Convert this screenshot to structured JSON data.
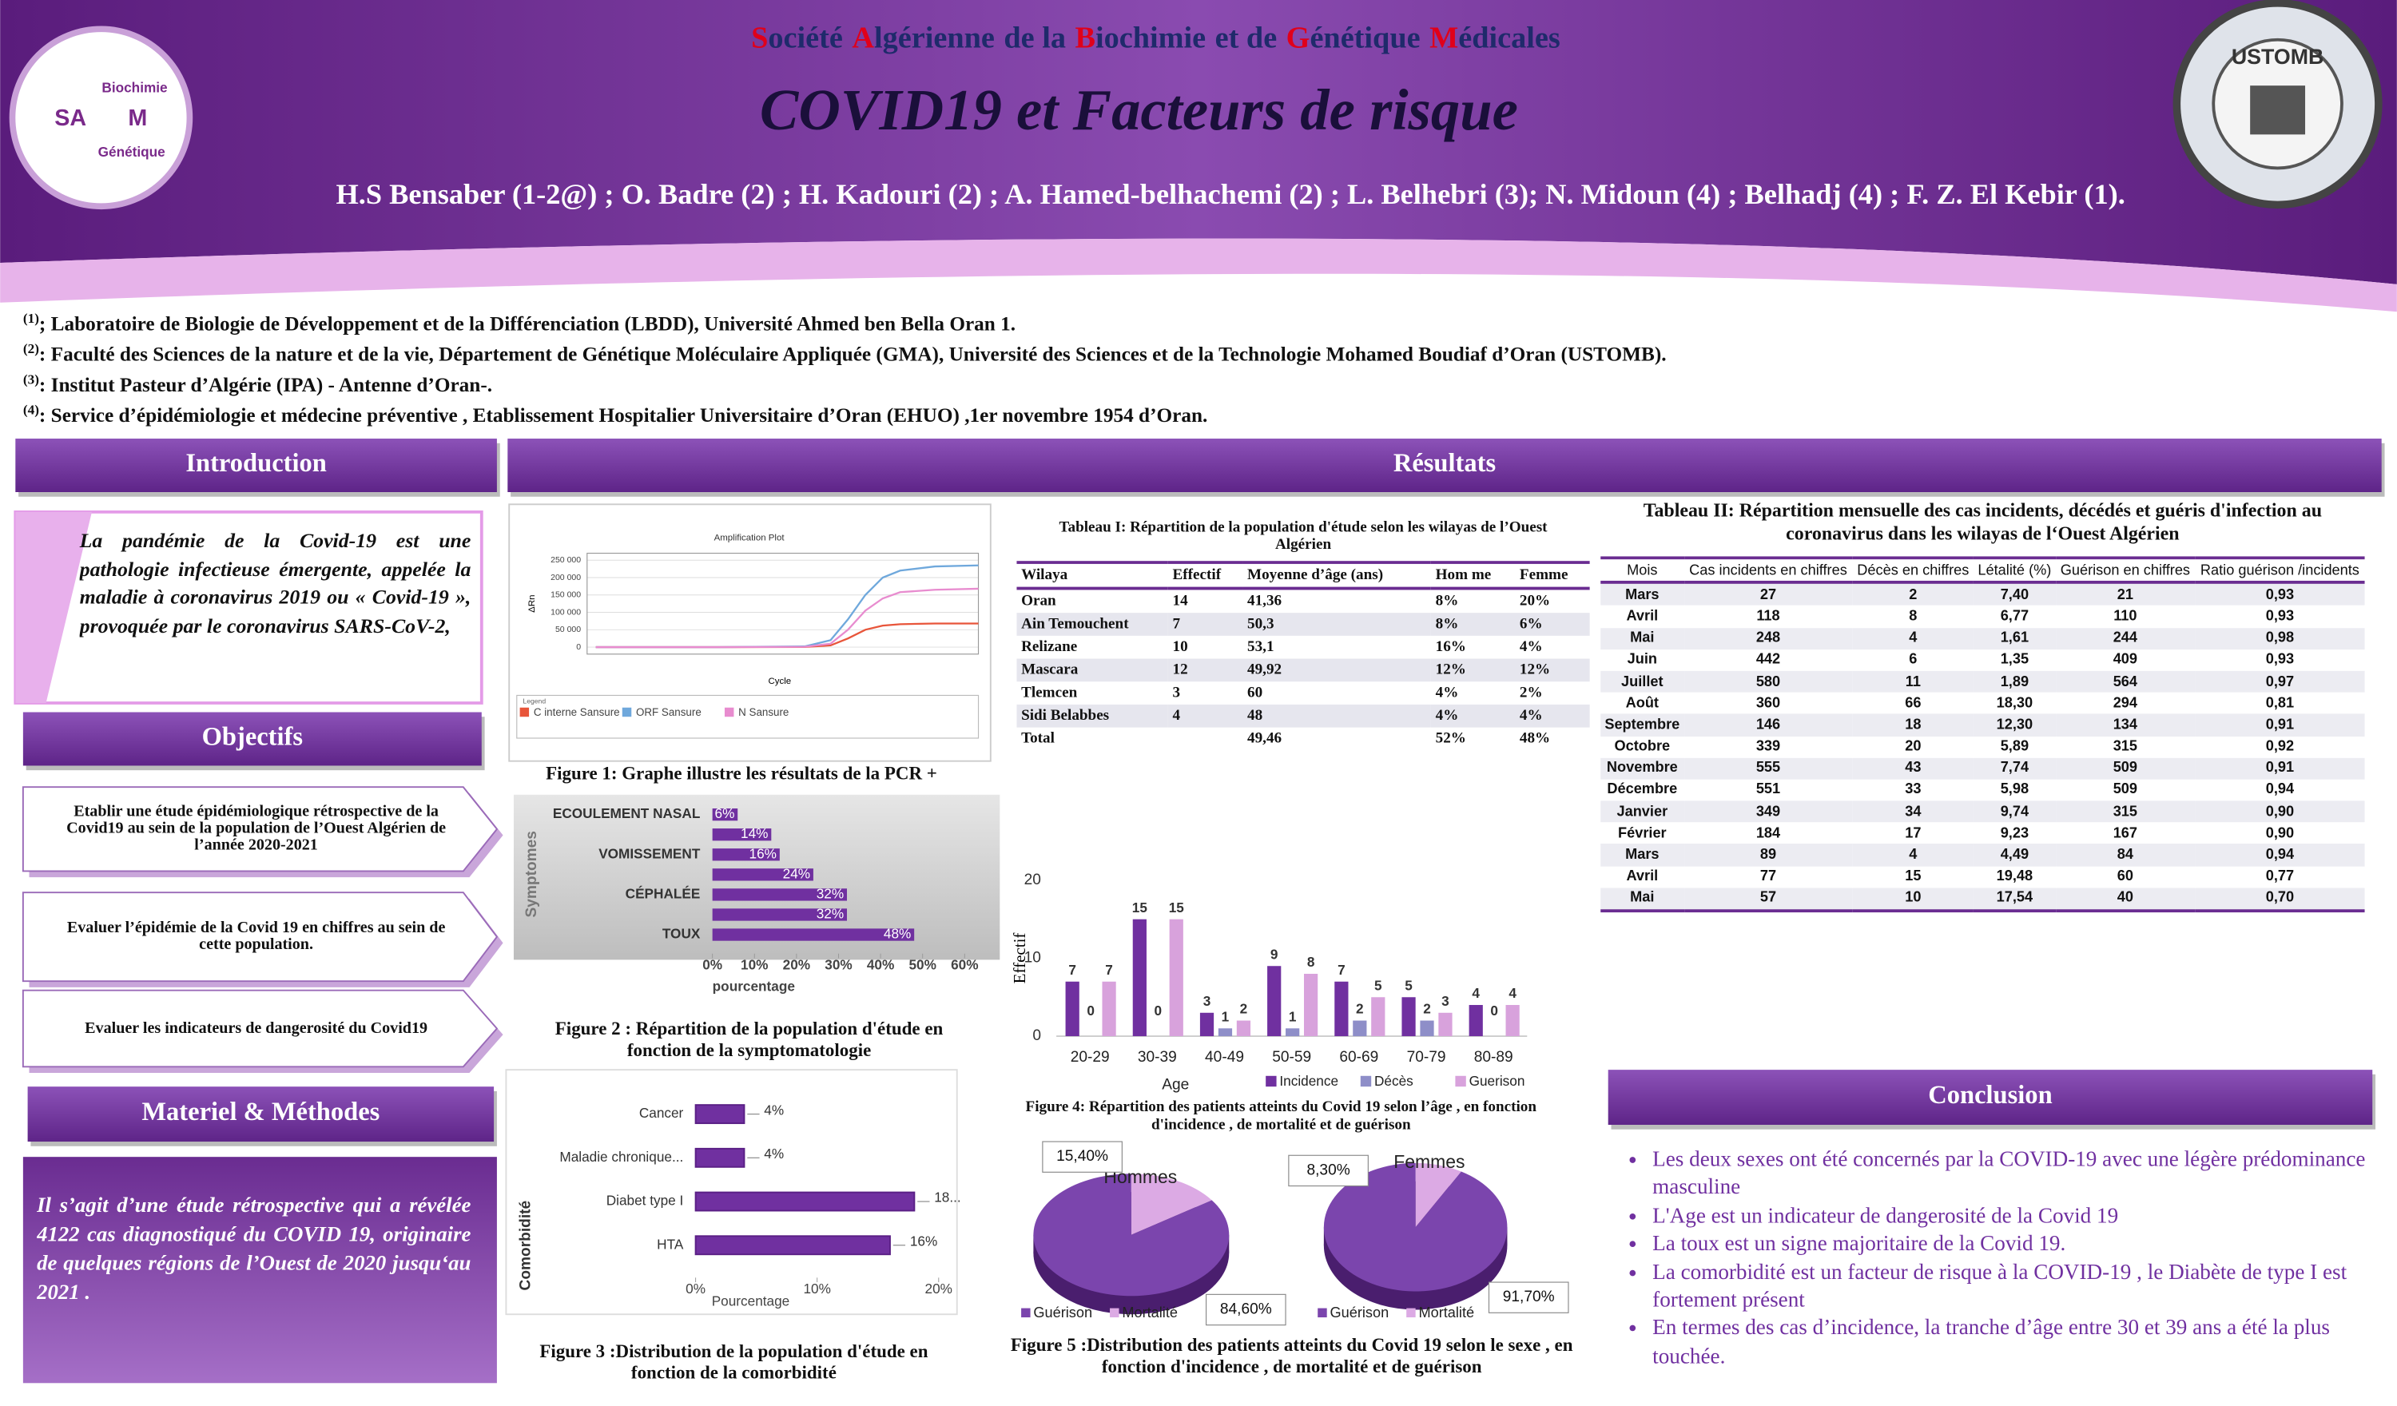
{
  "header": {
    "society": [
      "Société",
      "Algérienne",
      "de la",
      "Biochimie",
      "et de",
      "Génétique",
      "Médicales"
    ],
    "title": "COVID19 et Facteurs de risque",
    "authors": "H.S Bensaber (1-2@) ; O. Badre (2) ; H. Kadouri (2) ; A. Hamed-belhachemi (2) ; L. Belhebri (3); N. Midoun (4) ; Belhadj (4) ; F. Z. El Kebir (1).",
    "logo_left": [
      "Biochimie",
      "SA",
      "M",
      "Génétique"
    ],
    "logo_right": "USTOMB"
  },
  "affiliations": [
    {
      "mark": "(1)",
      "text": "; Laboratoire de Biologie de Développement et de la Différenciation (LBDD), Université Ahmed ben Bella Oran 1."
    },
    {
      "mark": "(2)",
      "text": ":  Faculté des Sciences de la nature et de la vie, Département de Génétique Moléculaire Appliquée (GMA), Université des Sciences et de la Technologie Mohamed Boudiaf d’Oran (USTOMB)."
    },
    {
      "mark": "(3)",
      "text": ": Institut Pasteur d’Algérie (IPA) - Antenne d’Oran-."
    },
    {
      "mark": "(4)",
      "text": ":  Service d’épidémiologie et médecine préventive , Etablissement Hospitalier Universitaire d’Oran (EHUO) ,1er novembre 1954 d’Oran."
    }
  ],
  "introduction": {
    "heading": "Introduction",
    "text": "La pandémie de la Covid-19 est  une pathologie infectieuse émergente, appelée la maladie à coronavirus 2019 ou « Covid-19 », provoquée par le coronavirus SARS-CoV-2,"
  },
  "objectifs": {
    "heading": "Objectifs",
    "items": [
      "Etablir une étude épidémiologique rétrospective de la Covid19 au sein de la  population de l’Ouest Algérien de l’année 2020-2021",
      "Evaluer  l’épidémie de la  Covid 19 en chiffres au sein de cette population.",
      "Evaluer les indicateurs de dangerosité du Covid19"
    ]
  },
  "methodes": {
    "heading": "Materiel & Méthodes",
    "text": "Il s’agit d’une étude rétrospective qui a révélée 4122 cas diagnostiqué du COVID 19, originaire de quelques régions de l’Ouest de 2020 jusqu‘au 2021 ."
  },
  "resultats": {
    "heading": "Résultats"
  },
  "conclusion": {
    "heading": "Conclusion",
    "items": [
      "Les deux sexes ont été concernés par la COVID-19 avec  une légère prédominance masculine",
      "L'Age est un indicateur  de dangerosité de la Covid 19",
      "La toux est un signe majoritaire de la Covid 19.",
      "La comorbidité est un facteur de risque à la COVID-19 , le Diabète de type I est fortement présent",
      "En termes des cas d’incidence, la tranche d’âge entre 30 et 39 ans a été la plus touchée."
    ]
  },
  "tables": {
    "t1": {
      "title": "Tableau I: Répartition de la population d'étude selon les wilayas de l’Ouest Algérien",
      "rows": [
        [
          "Wilaya",
          "Effectif",
          "Moyenne d’âge (ans)",
          "Hom me",
          "Femme"
        ],
        [
          "Oran",
          "14",
          "41,36",
          "8%",
          "20%"
        ],
        [
          "Ain Temouchent",
          "7",
          "50,3",
          "8%",
          "6%"
        ],
        [
          "Relizane",
          "10",
          "53,1",
          "16%",
          "4%"
        ],
        [
          "Mascara",
          "12",
          "49,92",
          "12%",
          "12%"
        ],
        [
          "Tlemcen",
          "3",
          "60",
          "4%",
          "2%"
        ],
        [
          "Sidi Belabbes",
          "4",
          "48",
          "4%",
          "4%"
        ],
        [
          "Total",
          null,
          "49,46",
          "52%",
          "48%"
        ]
      ]
    },
    "t2": {
      "title": "Tableau II: Répartition mensuelle des cas incidents, décédés et guéris d'infection au coronavirus dans les wilayas de l‘Ouest Algérien",
      "rows": [
        [
          "Mois",
          "Cas incidents en chiffres",
          "Décès en chiffres",
          "Létalité (%)",
          "Guérison en chiffres",
          "Ratio guérison /incidents"
        ],
        [
          "Mars",
          "27",
          "2",
          "7,40",
          "21",
          "0,93"
        ],
        [
          "Avril",
          "118",
          "8",
          "6,77",
          "110",
          "0,93"
        ],
        [
          "Mai",
          "248",
          "4",
          "1,61",
          "244",
          "0,98"
        ],
        [
          "Juin",
          "442",
          "6",
          "1,35",
          "409",
          "0,93"
        ],
        [
          "Juillet",
          "580",
          "11",
          "1,89",
          "564",
          "0,97"
        ],
        [
          "Août",
          "360",
          "66",
          "18,30",
          "294",
          "0,81"
        ],
        [
          "Septembre",
          "146",
          "18",
          "12,30",
          "134",
          "0,91"
        ],
        [
          "Octobre",
          "339",
          "20",
          "5,89",
          "315",
          "0,92"
        ],
        [
          "Novembre",
          "555",
          "43",
          "7,74",
          "509",
          "0,91"
        ],
        [
          "Décembre",
          "551",
          "33",
          "5,98",
          "509",
          "0,94"
        ],
        [
          "Janvier",
          "349",
          "34",
          "9,74",
          "315",
          "0,90"
        ],
        [
          "Février",
          "184",
          "17",
          "9,23",
          "167",
          "0,90"
        ],
        [
          "Mars",
          "89",
          "4",
          "4,49",
          "84",
          "0,94"
        ],
        [
          "Avril",
          "77",
          "15",
          "19,48",
          "60",
          "0,77"
        ],
        [
          "Mai",
          "57",
          "10",
          "17,54",
          "40",
          "0,70"
        ]
      ]
    }
  },
  "figures": {
    "figure1": {
      "type": "line",
      "title": "Amplification Plot",
      "caption": "Figure 1: Graphe illustre  les résultats de la  PCR +",
      "y_label": "ΔRn",
      "x_label": "Cycle",
      "legend_title": "Legend",
      "x": [
        1,
        15,
        25,
        28,
        30,
        32,
        34,
        36,
        40,
        45
      ],
      "xlim": [
        0,
        45
      ],
      "ylim": [
        -20000,
        270000
      ],
      "yticks": [
        {
          "value": 0,
          "label": "0"
        },
        {
          "value": 50000,
          "label": "50 000"
        },
        {
          "value": 100000,
          "label": "100 000"
        },
        {
          "value": 150000,
          "label": "150 000"
        },
        {
          "value": 200000,
          "label": "200 000"
        },
        {
          "value": 250000,
          "label": "250 000"
        }
      ],
      "grid": true,
      "series": [
        {
          "name": "C interne Sansure",
          "color": "#e8553a",
          "values": [
            0,
            0,
            500,
            5000,
            25000,
            50000,
            62000,
            66000,
            68000,
            68000
          ]
        },
        {
          "name": "ORF Sansure",
          "color": "#6fa8dc",
          "values": [
            0,
            0,
            2000,
            20000,
            80000,
            150000,
            200000,
            220000,
            232000,
            235000
          ]
        },
        {
          "name": "N Sansure",
          "color": "#e88ccf",
          "values": [
            0,
            0,
            1000,
            10000,
            50000,
            105000,
            140000,
            158000,
            165000,
            168000
          ]
        }
      ]
    },
    "figure2": {
      "type": "hbar",
      "caption": "Figure 2 : Répartition de la population d'étude en fonction de la symptomatologie",
      "y_label": "Symptomes",
      "x_label": "pourcentage",
      "categories": [
        "ECOULEMENT NASAL",
        null,
        "VOMISSEMENT",
        null,
        "CÉPHALÉE",
        null,
        "TOUX"
      ],
      "values": [
        6,
        14,
        16,
        24,
        32,
        32,
        48
      ],
      "value_labels": [
        "6%",
        "14%",
        "16%",
        "24%",
        "32%",
        "32%",
        "48%"
      ],
      "color": "#7030a0",
      "xlim": [
        0,
        60
      ],
      "xticks": [
        {
          "value": 0,
          "label": "0%"
        },
        {
          "value": 10,
          "label": "10%"
        },
        {
          "value": 20,
          "label": "20%"
        },
        {
          "value": 30,
          "label": "30%"
        },
        {
          "value": 40,
          "label": "40%"
        },
        {
          "value": 50,
          "label": "50%"
        },
        {
          "value": 60,
          "label": "60%"
        }
      ]
    },
    "figure3": {
      "type": "hbar",
      "caption": "Figure 3 :Distribution  de la population d'étude en fonction de la comorbidité",
      "y_label": "Comorbidité",
      "x_label": "Pourcentage",
      "categories": [
        "Cancer",
        "Maladie chronique...",
        "Diabet type I",
        "HTA"
      ],
      "values": [
        4,
        4,
        18,
        16
      ],
      "value_labels": [
        "4%",
        "4%",
        "18...",
        "16%"
      ],
      "color": "#7030a0",
      "xlim": [
        0,
        20
      ],
      "xticks": [
        {
          "value": 0,
          "label": "0%"
        },
        {
          "value": 10,
          "label": "10%"
        },
        {
          "value": 20,
          "label": "20%"
        }
      ]
    },
    "figure4": {
      "type": "bar",
      "caption": "Figure 4: Répartition des patients atteints du Covid 19 selon l’âge , en fonction d'incidence , de mortalité et  de guérison",
      "y_label": "Effectif",
      "x_label": "Age",
      "categories": [
        "20-29",
        "30-39",
        "40-49",
        "50-59",
        "60-69",
        "70-79",
        "80-89"
      ],
      "ylim": [
        0,
        20
      ],
      "yticks": [
        0,
        10,
        20
      ],
      "series": [
        {
          "name": "Incidence",
          "color": "#7030a0",
          "values": [
            7,
            15,
            3,
            9,
            7,
            5,
            4
          ]
        },
        {
          "name": "Décès",
          "color": "#8e8ec8",
          "values": [
            0,
            0,
            1,
            1,
            2,
            2,
            0
          ]
        },
        {
          "name": "Guerison",
          "color": "#d8a2dc",
          "values": [
            7,
            15,
            2,
            8,
            5,
            3,
            4
          ]
        }
      ]
    },
    "figure5": {
      "type": "pie",
      "caption": "Figure 5 :Distribution des patients atteints du Covid 19 selon le sexe , en fonction d'incidence ,  de mortalité et  de guérison",
      "labels": [
        "Guérison",
        "Mortalité"
      ],
      "colors": [
        "#7b45ad",
        "#dcaae4"
      ],
      "pies": [
        {
          "title": "Hommes",
          "values": [
            84.6,
            15.4
          ],
          "value_labels": [
            "84,60%",
            "15,40%"
          ]
        },
        {
          "title": "Femmes",
          "values": [
            91.7,
            8.3
          ],
          "value_labels": [
            "91,70%",
            "8,30%"
          ]
        }
      ]
    }
  }
}
